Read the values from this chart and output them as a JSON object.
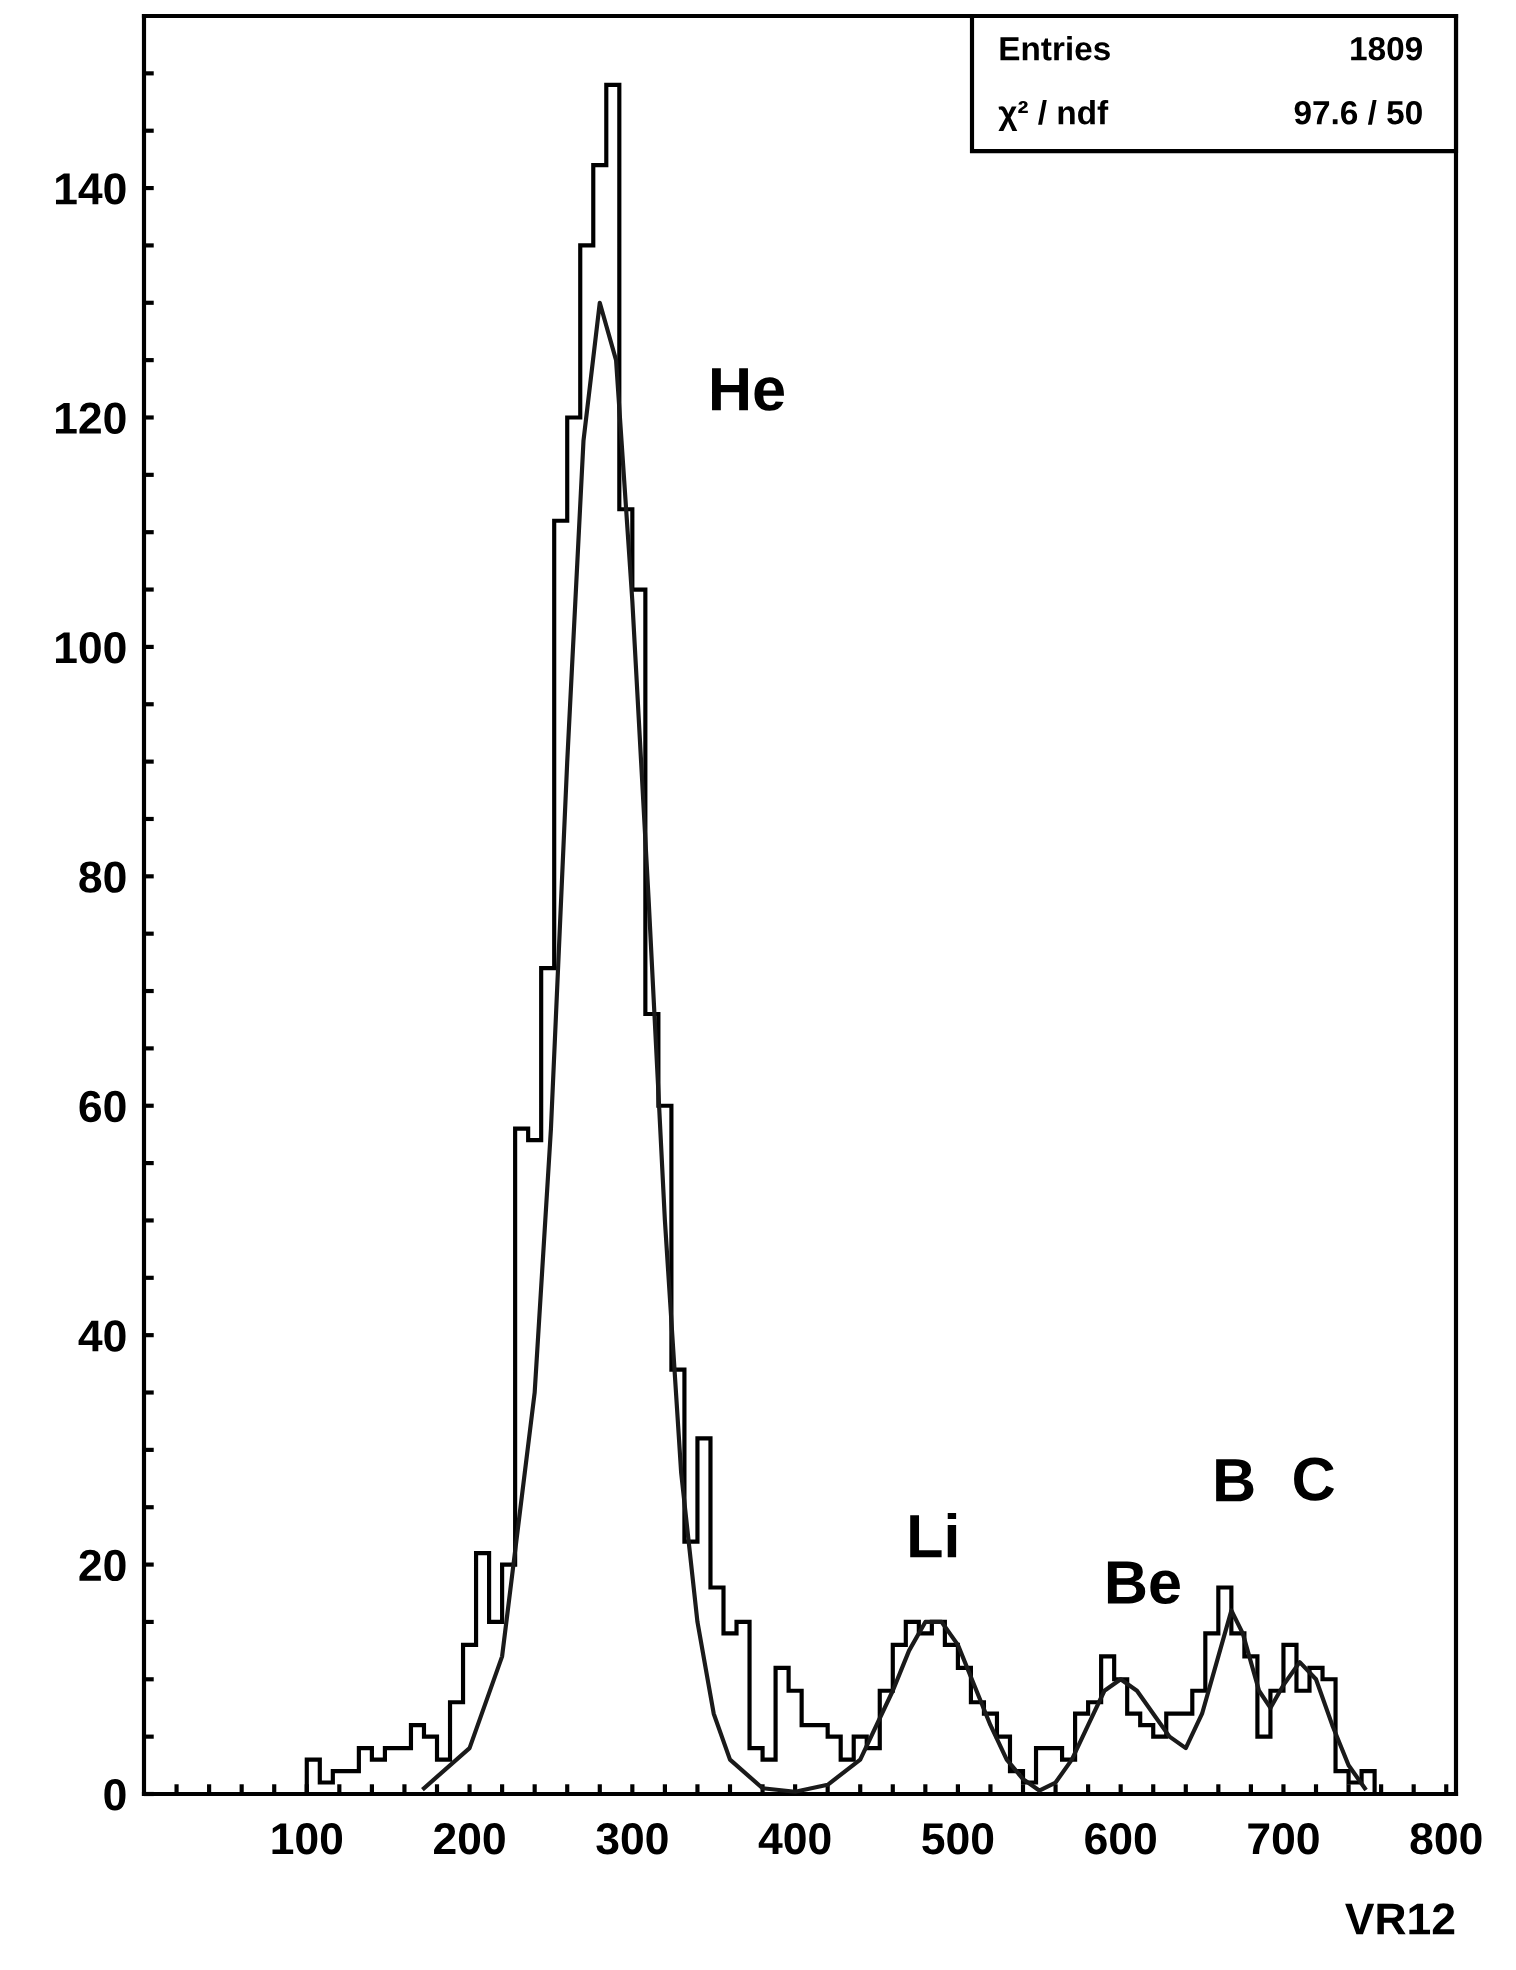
{
  "chart_data": {
    "type": "histogram",
    "xlabel": "VR12",
    "xlim": [
      0,
      806
    ],
    "ylim": [
      0,
      155
    ],
    "xticks": [
      {
        "value": 20,
        "label": null
      },
      {
        "value": 40,
        "label": null
      },
      {
        "value": 60,
        "label": null
      },
      {
        "value": 80,
        "label": null
      },
      100,
      {
        "value": 120,
        "label": null
      },
      {
        "value": 140,
        "label": null
      },
      {
        "value": 160,
        "label": null
      },
      {
        "value": 180,
        "label": null
      },
      200,
      {
        "value": 220,
        "label": null
      },
      {
        "value": 240,
        "label": null
      },
      {
        "value": 260,
        "label": null
      },
      {
        "value": 280,
        "label": null
      },
      300,
      {
        "value": 320,
        "label": null
      },
      {
        "value": 340,
        "label": null
      },
      {
        "value": 360,
        "label": null
      },
      {
        "value": 380,
        "label": null
      },
      400,
      {
        "value": 420,
        "label": null
      },
      {
        "value": 440,
        "label": null
      },
      {
        "value": 460,
        "label": null
      },
      {
        "value": 480,
        "label": null
      },
      500,
      {
        "value": 520,
        "label": null
      },
      {
        "value": 540,
        "label": null
      },
      {
        "value": 560,
        "label": null
      },
      {
        "value": 580,
        "label": null
      },
      600,
      {
        "value": 620,
        "label": null
      },
      {
        "value": 640,
        "label": null
      },
      {
        "value": 660,
        "label": null
      },
      {
        "value": 680,
        "label": null
      },
      700,
      {
        "value": 720,
        "label": null
      },
      {
        "value": 740,
        "label": null
      },
      {
        "value": 760,
        "label": null
      },
      {
        "value": 780,
        "label": null
      },
      800
    ],
    "yticks": [
      0,
      {
        "value": 5,
        "label": null
      },
      {
        "value": 10,
        "label": null
      },
      {
        "value": 15,
        "label": null
      },
      20,
      {
        "value": 25,
        "label": null
      },
      {
        "value": 30,
        "label": null
      },
      {
        "value": 35,
        "label": null
      },
      40,
      {
        "value": 45,
        "label": null
      },
      {
        "value": 50,
        "label": null
      },
      {
        "value": 55,
        "label": null
      },
      60,
      {
        "value": 65,
        "label": null
      },
      {
        "value": 70,
        "label": null
      },
      {
        "value": 75,
        "label": null
      },
      80,
      {
        "value": 85,
        "label": null
      },
      {
        "value": 90,
        "label": null
      },
      {
        "value": 95,
        "label": null
      },
      100,
      {
        "value": 105,
        "label": null
      },
      {
        "value": 110,
        "label": null
      },
      {
        "value": 115,
        "label": null
      },
      120,
      {
        "value": 125,
        "label": null
      },
      {
        "value": 130,
        "label": null
      },
      {
        "value": 135,
        "label": null
      },
      140,
      {
        "value": 145,
        "label": null
      },
      {
        "value": 150,
        "label": null
      }
    ],
    "grid": false,
    "series": [
      {
        "color": "#000000",
        "bins": [
          100,
          108,
          116,
          124,
          132,
          140,
          148,
          156,
          164,
          172,
          180,
          188,
          196,
          204,
          212,
          220,
          228,
          236,
          244,
          252,
          260,
          268,
          276,
          284,
          292,
          300,
          308,
          316,
          324,
          332,
          340,
          348,
          356,
          364,
          372,
          380,
          388,
          396,
          404,
          412,
          420,
          428,
          436,
          444,
          452,
          460,
          468,
          476,
          484,
          492,
          500,
          508,
          516,
          524,
          532,
          540,
          548,
          556,
          564,
          572,
          580,
          588,
          596,
          604,
          612,
          620,
          628,
          636,
          644,
          652,
          660,
          668,
          676,
          684,
          692,
          700,
          708,
          716,
          724,
          732,
          740,
          748,
          756
        ],
        "values": [
          3,
          1,
          2,
          2,
          4,
          3,
          4,
          4,
          6,
          5,
          3,
          8,
          13,
          21,
          15,
          20,
          58,
          57,
          72,
          111,
          120,
          135,
          142,
          149,
          112,
          105,
          68,
          60,
          37,
          22,
          31,
          18,
          14,
          15,
          4,
          3,
          11,
          9,
          6,
          6,
          5,
          3,
          5,
          4,
          9,
          13,
          15,
          14,
          15,
          13,
          11,
          8,
          7,
          5,
          2,
          1,
          4,
          4,
          3,
          7,
          8,
          12,
          10,
          7,
          6,
          5,
          7,
          7,
          9,
          14,
          18,
          14,
          12,
          5,
          9,
          13,
          9,
          11,
          10,
          2,
          1,
          2
        ]
      },
      {
        "type": "line",
        "color": "#1a1a1a",
        "x": [
          172,
          200,
          220,
          240,
          250,
          260,
          270,
          280,
          290,
          300,
          310,
          320,
          330,
          340,
          350,
          360,
          380,
          400,
          420,
          440,
          460,
          470,
          480,
          490,
          500,
          510,
          520,
          530,
          540,
          550,
          560,
          570,
          580,
          590,
          600,
          610,
          620,
          630,
          640,
          650,
          660,
          668,
          675,
          685,
          692,
          700,
          710,
          720,
          730,
          740,
          750
        ],
        "values": [
          0.5,
          4,
          12,
          35,
          58,
          90,
          118,
          130,
          125,
          104,
          78,
          50,
          28,
          15,
          7,
          3,
          0.5,
          0.2,
          0.8,
          3,
          9,
          12.5,
          15,
          15,
          13,
          9.5,
          6,
          3,
          1.3,
          0.3,
          1,
          3,
          6,
          9,
          10,
          9,
          7,
          5,
          4,
          7,
          12,
          16,
          14,
          9,
          7.5,
          9.5,
          11.5,
          10,
          6,
          2.5,
          0.5
        ]
      }
    ],
    "annotations": [
      "Entries",
      "1809",
      "χ² / ndf",
      "97.6 / 50",
      {
        "text": "He",
        "x": 280,
        "y": 130
      },
      {
        "text": "Li",
        "x": 490,
        "y": 15
      },
      {
        "text": "Be",
        "x": 600,
        "y": 10
      },
      {
        "text": "B",
        "x": 668,
        "y": 16
      },
      {
        "text": "C",
        "x": 710,
        "y": 11.5
      }
    ]
  }
}
